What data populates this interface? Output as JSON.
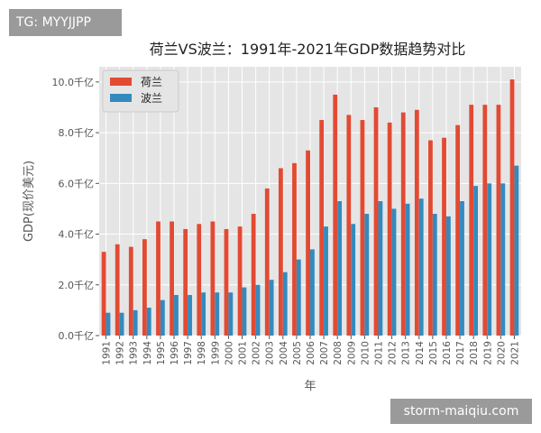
{
  "tag": "TG: MYYJJPP",
  "watermark": "storm-maiqiu.com",
  "chart_data": {
    "type": "bar",
    "title": "荷兰VS波兰：1991年-2021年GDP数据趋势对比",
    "xlabel": "年",
    "ylabel": "GDP(现价美元)",
    "categories": [
      "1991",
      "1992",
      "1993",
      "1994",
      "1995",
      "1996",
      "1997",
      "1998",
      "1999",
      "2000",
      "2001",
      "2002",
      "2003",
      "2004",
      "2005",
      "2006",
      "2007",
      "2008",
      "2009",
      "2010",
      "2011",
      "2012",
      "2013",
      "2014",
      "2015",
      "2016",
      "2017",
      "2018",
      "2019",
      "2020",
      "2021"
    ],
    "series": [
      {
        "name": "荷兰",
        "color": "#e24a33",
        "values": [
          3.3,
          3.6,
          3.5,
          3.8,
          4.5,
          4.5,
          4.2,
          4.4,
          4.5,
          4.2,
          4.3,
          4.8,
          5.8,
          6.6,
          6.8,
          7.3,
          8.5,
          9.5,
          8.7,
          8.5,
          9.0,
          8.4,
          8.8,
          8.9,
          7.7,
          7.8,
          8.3,
          9.1,
          9.1,
          9.1,
          10.1
        ]
      },
      {
        "name": "波兰",
        "color": "#348abd",
        "values": [
          0.9,
          0.9,
          1.0,
          1.1,
          1.4,
          1.6,
          1.6,
          1.7,
          1.7,
          1.7,
          1.9,
          2.0,
          2.2,
          2.5,
          3.0,
          3.4,
          4.3,
          5.3,
          4.4,
          4.8,
          5.3,
          5.0,
          5.2,
          5.4,
          4.8,
          4.7,
          5.3,
          5.9,
          6.0,
          6.0,
          6.7
        ]
      }
    ],
    "yticks": [
      "0.0千亿",
      "2.0千亿",
      "4.0千亿",
      "6.0千亿",
      "8.0千亿",
      "10.0千亿"
    ],
    "ytick_values": [
      0,
      2,
      4,
      6,
      8,
      10
    ],
    "ylim": [
      0,
      10.6
    ],
    "grid": true,
    "legend": "top-left"
  }
}
